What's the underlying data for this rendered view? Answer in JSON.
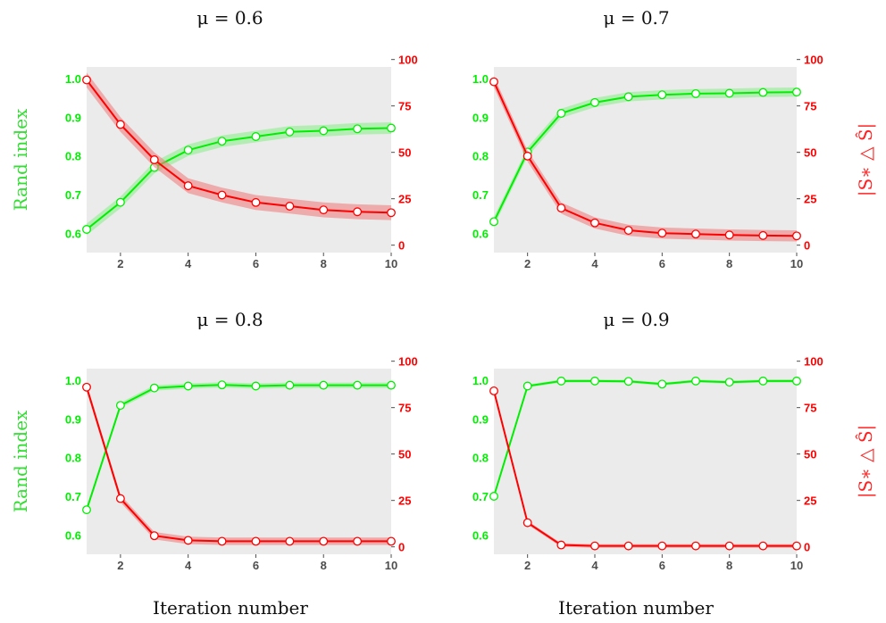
{
  "colors": {
    "rand": "#00ee00",
    "rand_band": "#90ee90",
    "sym": "#ff0000",
    "sym_band": "#f08080",
    "panel_bg": "#ebebeb"
  },
  "labels": {
    "rand_ylabel": "Rand index",
    "sym_ylabel": "|S∗ △ Ŝ|",
    "xlabel": "Iteration number"
  },
  "chart_data": [
    {
      "type": "line",
      "title": "μ = 0.6",
      "x": [
        1,
        2,
        3,
        4,
        5,
        6,
        7,
        8,
        9,
        10
      ],
      "xlim": [
        1,
        10
      ],
      "xticks": [
        "2",
        "4",
        "6",
        "8",
        "10"
      ],
      "y_left": {
        "label": "Rand index",
        "ylim": [
          0.55,
          1.03
        ],
        "ticks": [
          "0.6",
          "0.7",
          "0.8",
          "0.9",
          "1.0"
        ]
      },
      "y_right": {
        "label": "|S∗ △ Ŝ|",
        "ylim": [
          -4,
          96
        ],
        "ticks": [
          "0",
          "25",
          "50",
          "75",
          "100"
        ]
      },
      "series": [
        {
          "name": "Rand index",
          "axis": "left",
          "values": [
            0.61,
            0.68,
            0.77,
            0.815,
            0.838,
            0.85,
            0.862,
            0.865,
            0.87,
            0.872
          ],
          "band": 0.015
        },
        {
          "name": "|S∗ △ Ŝ|",
          "axis": "right",
          "values": [
            89,
            65,
            46,
            32,
            27,
            23,
            21,
            19,
            18,
            17.5
          ],
          "band": 4
        }
      ]
    },
    {
      "type": "line",
      "title": "μ = 0.7",
      "x": [
        1,
        2,
        3,
        4,
        5,
        6,
        7,
        8,
        9,
        10
      ],
      "xlim": [
        1,
        10
      ],
      "xticks": [
        "2",
        "4",
        "6",
        "8",
        "10"
      ],
      "y_left": {
        "label": "Rand index",
        "ylim": [
          0.55,
          1.03
        ],
        "ticks": [
          "0.6",
          "0.7",
          "0.8",
          "0.9",
          "1.0"
        ]
      },
      "y_right": {
        "label": "|S∗ △ Ŝ|",
        "ylim": [
          -4,
          96
        ],
        "ticks": [
          "0",
          "25",
          "50",
          "75",
          "100"
        ]
      },
      "series": [
        {
          "name": "Rand index",
          "axis": "left",
          "values": [
            0.63,
            0.81,
            0.91,
            0.938,
            0.953,
            0.958,
            0.961,
            0.962,
            0.964,
            0.965
          ],
          "band": 0.012
        },
        {
          "name": "|S∗ △ Ŝ|",
          "axis": "right",
          "values": [
            88,
            48,
            20,
            12,
            8,
            6.5,
            6,
            5.5,
            5.2,
            5
          ],
          "band": 3
        }
      ]
    },
    {
      "type": "line",
      "title": "μ = 0.8",
      "x": [
        1,
        2,
        3,
        4,
        5,
        6,
        7,
        8,
        9,
        10
      ],
      "xlim": [
        1,
        10
      ],
      "xticks": [
        "2",
        "4",
        "6",
        "8",
        "10"
      ],
      "y_left": {
        "label": "Rand index",
        "ylim": [
          0.55,
          1.03
        ],
        "ticks": [
          "0.6",
          "0.7",
          "0.8",
          "0.9",
          "1.0"
        ]
      },
      "y_right": {
        "label": "|S∗ △ Ŝ|",
        "ylim": [
          -4,
          96
        ],
        "ticks": [
          "0",
          "25",
          "50",
          "75",
          "100"
        ]
      },
      "series": [
        {
          "name": "Rand index",
          "axis": "left",
          "values": [
            0.665,
            0.935,
            0.98,
            0.985,
            0.988,
            0.985,
            0.987,
            0.987,
            0.987,
            0.987
          ],
          "band": 0.007
        },
        {
          "name": "|S∗ △ Ŝ|",
          "axis": "right",
          "values": [
            86,
            26,
            6,
            3.5,
            3,
            3,
            3,
            3,
            3,
            3
          ],
          "band": 2
        }
      ]
    },
    {
      "type": "line",
      "title": "μ = 0.9",
      "x": [
        1,
        2,
        3,
        4,
        5,
        6,
        7,
        8,
        9,
        10
      ],
      "xlim": [
        1,
        10
      ],
      "xticks": [
        "2",
        "4",
        "6",
        "8",
        "10"
      ],
      "y_left": {
        "label": "Rand index",
        "ylim": [
          0.55,
          1.03
        ],
        "ticks": [
          "0.6",
          "0.7",
          "0.8",
          "0.9",
          "1.0"
        ]
      },
      "y_right": {
        "label": "|S∗ △ Ŝ|",
        "ylim": [
          -4,
          96
        ],
        "ticks": [
          "0",
          "25",
          "50",
          "75",
          "100"
        ]
      },
      "series": [
        {
          "name": "Rand index",
          "axis": "left",
          "values": [
            0.7,
            0.985,
            0.998,
            0.998,
            0.997,
            0.99,
            0.998,
            0.995,
            0.998,
            0.998
          ],
          "band": 0.004
        },
        {
          "name": "|S∗ △ Ŝ|",
          "axis": "right",
          "values": [
            84,
            13,
            1,
            0.5,
            0.5,
            0.5,
            0.5,
            0.5,
            0.5,
            0.5
          ],
          "band": 1
        }
      ]
    }
  ]
}
